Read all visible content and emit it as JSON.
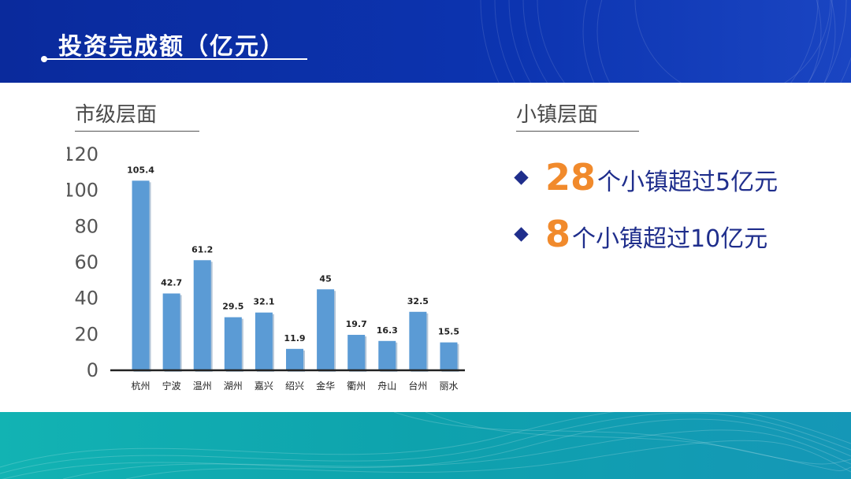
{
  "header": {
    "title": "投资完成额（亿元）"
  },
  "left": {
    "title": "市级层面"
  },
  "right": {
    "title": "小镇层面",
    "stats": [
      {
        "number": "28",
        "text": "个小镇超过5亿元"
      },
      {
        "number": "8",
        "text": "个小镇超过10亿元"
      }
    ]
  },
  "colors": {
    "header_blue": "#0c34b0",
    "bar_blue": "#5b9bd5",
    "accent_orange": "#f18a2c",
    "text_navy": "#1f2e8c",
    "footer_teal": "#12b3b3"
  },
  "chart_data": {
    "type": "bar",
    "categories": [
      "杭州",
      "宁波",
      "温州",
      "湖州",
      "嘉兴",
      "绍兴",
      "金华",
      "衢州",
      "舟山",
      "台州",
      "丽水"
    ],
    "values": [
      105.4,
      42.7,
      61.2,
      29.5,
      32.1,
      11.9,
      45,
      19.7,
      16.3,
      32.5,
      15.5
    ],
    "data_labels": [
      "105.4",
      "42.7",
      "61.2",
      "29.5",
      "32.1",
      "11.9",
      "45",
      "19.7",
      "16.3",
      "32.5",
      "15.5"
    ],
    "yticks": [
      "0",
      "20",
      "40",
      "60",
      "80",
      "100",
      "120"
    ],
    "ylim": [
      0,
      120
    ],
    "grid": false,
    "legend": "none"
  }
}
